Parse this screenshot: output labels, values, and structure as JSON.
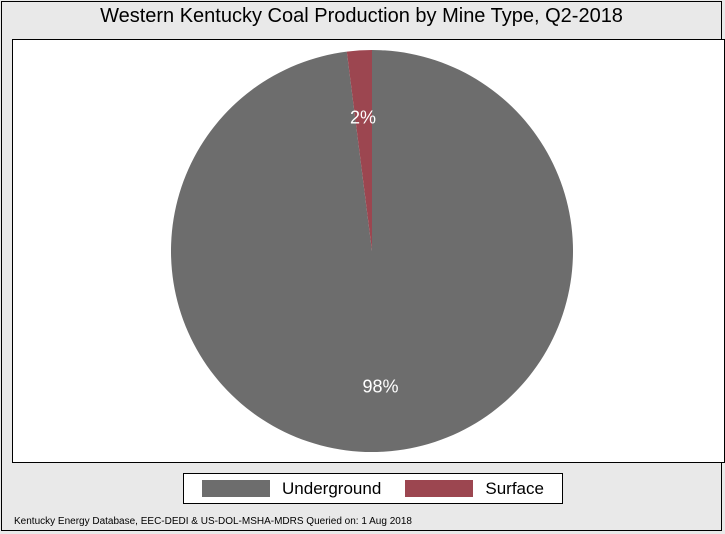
{
  "chart_data": {
    "type": "pie",
    "title": "Western Kentucky Coal Production by Mine Type, Q2-2018",
    "slices": [
      {
        "name": "Underground",
        "value": 98,
        "label": "98%",
        "color": "#6d6d6d"
      },
      {
        "name": "Surface",
        "value": 2,
        "label": "2%",
        "color": "#9c4650"
      }
    ],
    "legend_position": "bottom",
    "source_note": "Kentucky Energy Database, EEC-DEDI & US-DOL-MSHA-MDRS Queried on: 1 Aug 2018"
  },
  "legend": {
    "items": [
      {
        "label": "Underground",
        "color": "#6d6d6d"
      },
      {
        "label": "Surface",
        "color": "#9c4650"
      }
    ]
  }
}
